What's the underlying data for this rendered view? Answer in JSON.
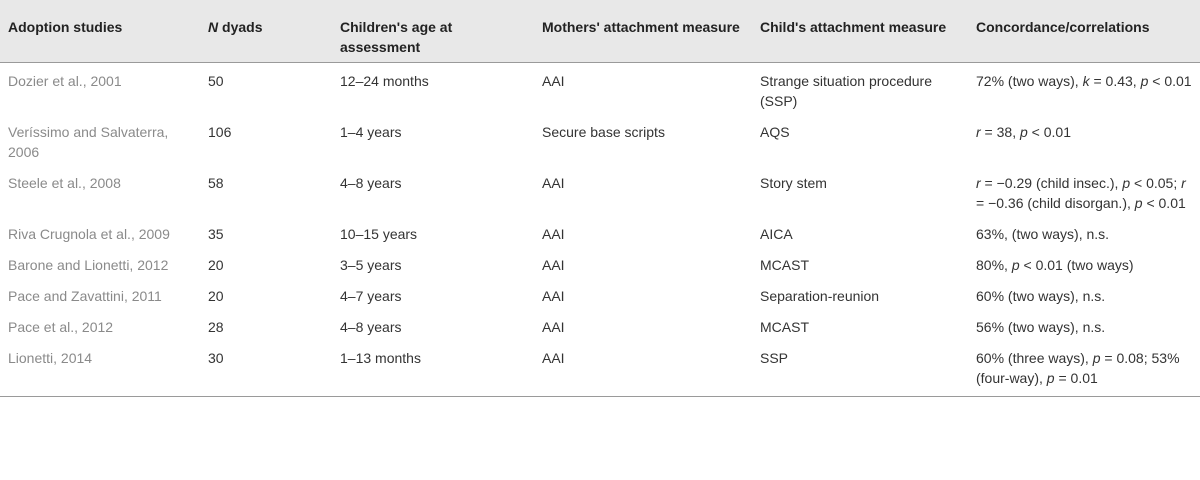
{
  "headers": {
    "study": "Adoption studies",
    "n_italic": "N",
    "n_rest": " dyads",
    "age": "Children's age at assessment",
    "mother": "Mothers' attachment measure",
    "child": "Child's attachment measure",
    "concordance": "Concordance/correlations"
  },
  "rows": [
    {
      "study": "Dozier et al., 2001",
      "n": "50",
      "age": "12–24 months",
      "mother": "AAI",
      "child": "Strange situation procedure (SSP)",
      "conc": [
        {
          "t": "72% (two ways), "
        },
        {
          "t": "k",
          "i": true
        },
        {
          "t": " = 0.43, "
        },
        {
          "t": "p",
          "i": true
        },
        {
          "t": " < 0.01"
        }
      ]
    },
    {
      "study": "Veríssimo and Salvaterra, 2006",
      "n": "106",
      "age": "1–4 years",
      "mother": "Secure base scripts",
      "child": "AQS",
      "conc": [
        {
          "t": "r",
          "i": true
        },
        {
          "t": " = 38, "
        },
        {
          "t": "p",
          "i": true
        },
        {
          "t": " < 0.01"
        }
      ]
    },
    {
      "study": "Steele et al., 2008",
      "n": "58",
      "age": "4–8 years",
      "mother": "AAI",
      "child": "Story stem",
      "conc": [
        {
          "t": "r",
          "i": true
        },
        {
          "t": " = −0.29 (child insec.), "
        },
        {
          "t": "p",
          "i": true
        },
        {
          "t": " < 0.05; "
        },
        {
          "t": "r",
          "i": true
        },
        {
          "t": "  = −0.36 (child disorgan.), "
        },
        {
          "t": "p",
          "i": true
        },
        {
          "t": " < 0.01"
        }
      ]
    },
    {
      "study": "Riva Crugnola et al., 2009",
      "n": "35",
      "age": "10–15 years",
      "mother": "AAI",
      "child": "AICA",
      "conc": [
        {
          "t": "63%, (two ways), n.s."
        }
      ]
    },
    {
      "study": "Barone and Lionetti, 2012",
      "n": "20",
      "age": "3–5 years",
      "mother": "AAI",
      "child": "MCAST",
      "conc": [
        {
          "t": "80%, "
        },
        {
          "t": "p",
          "i": true
        },
        {
          "t": " < 0.01 (two ways)"
        }
      ]
    },
    {
      "study": "Pace and Zavattini, 2011",
      "n": "20",
      "age": "4–7 years",
      "mother": "AAI",
      "child": "Separation-reunion",
      "conc": [
        {
          "t": "60% (two ways), n.s."
        }
      ]
    },
    {
      "study": "Pace et al., 2012",
      "n": "28",
      "age": "4–8 years",
      "mother": "AAI",
      "child": "MCAST",
      "conc": [
        {
          "t": "56% (two ways), n.s."
        }
      ]
    },
    {
      "study": "Lionetti, 2014",
      "n": "30",
      "age": "1–13 months",
      "mother": "AAI",
      "child": "SSP",
      "conc": [
        {
          "t": "60% (three ways), "
        },
        {
          "t": "p",
          "i": true
        },
        {
          "t": " = 0.08; 53% (four-way), "
        },
        {
          "t": "p",
          "i": true
        },
        {
          "t": " = 0.01"
        }
      ]
    }
  ]
}
